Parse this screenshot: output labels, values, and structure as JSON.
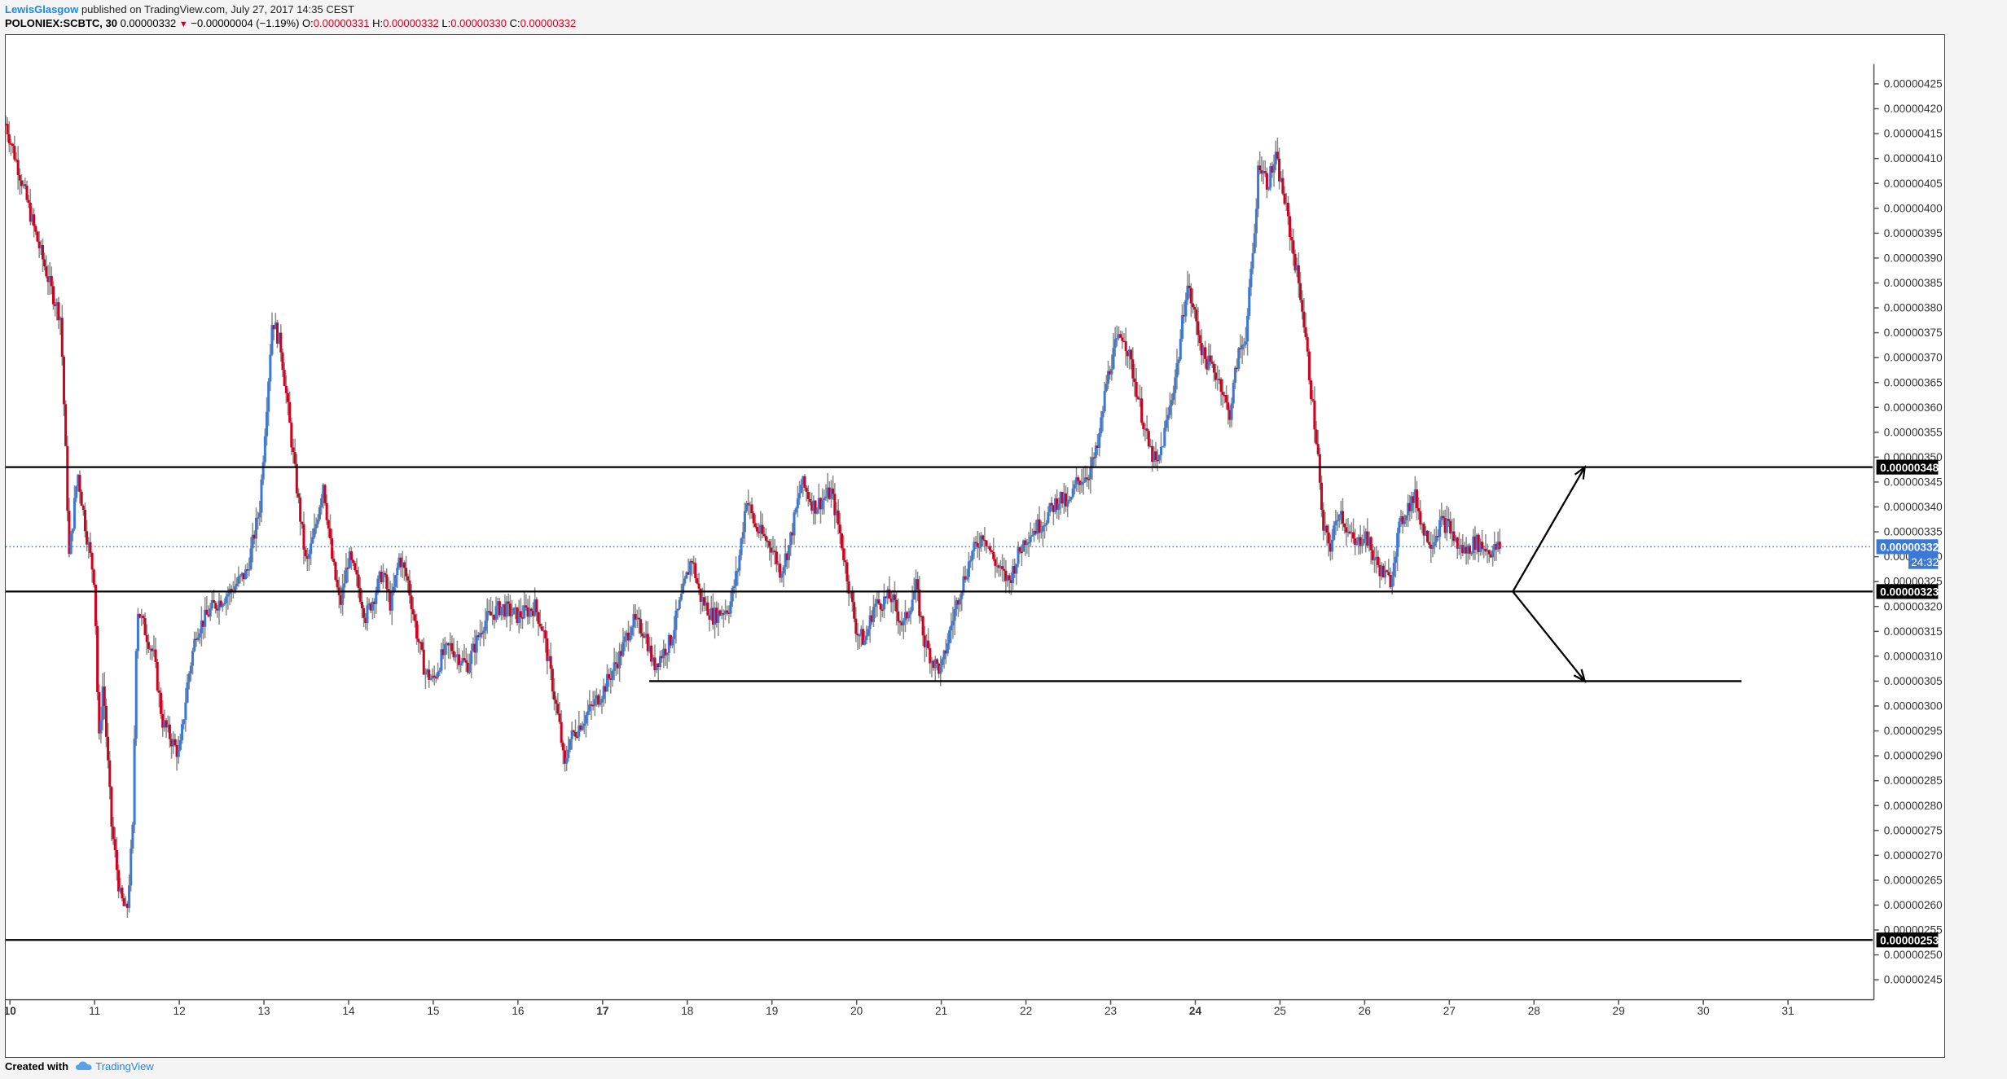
{
  "header": {
    "author": "LewisGlasgow",
    "published_text": "published on TradingView.com, July 27, 2017 14:35 CEST",
    "symbol": "POLONIEX:SCBTC, 30",
    "last_price": "0.00000332",
    "change_arrow": "▼",
    "change": "−0.00000004 (−1.19%)",
    "open_label": "O:",
    "open": "0.00000331",
    "high_label": "H:",
    "high": "0.00000332",
    "low_label": "L:",
    "low": "0.00000330",
    "close_label": "C:",
    "close": "0.00000332"
  },
  "footer": {
    "created_with": "Created with",
    "logo_icon": "tradingview-cloud-icon",
    "brand": "TradingView"
  },
  "colors": {
    "up": "#3a79d8",
    "down": "#d1001f",
    "wick": "#8a8a8a",
    "price_line": "#3a79d8",
    "level_line": "#000000",
    "badge_blue": "#3a79d8",
    "badge_black": "#000000"
  },
  "chart_data": {
    "type": "candlestick",
    "title": "POLONIEX:SCBTC, 30",
    "xlabel": "",
    "ylabel": "",
    "ylim": [
      2.41e-06,
      4.29e-06
    ],
    "x_range": [
      9.95,
      32.0
    ],
    "x_ticks": [
      "10",
      "11",
      "12",
      "13",
      "14",
      "15",
      "16",
      "17",
      "18",
      "19",
      "20",
      "21",
      "22",
      "23",
      "24",
      "25",
      "26",
      "27",
      "28",
      "29",
      "30",
      "31"
    ],
    "y_ticks": [
      "0.00000245",
      "0.00000250",
      "0.00000255",
      "0.00000260",
      "0.00000265",
      "0.00000270",
      "0.00000275",
      "0.00000280",
      "0.00000285",
      "0.00000290",
      "0.00000295",
      "0.00000300",
      "0.00000305",
      "0.00000310",
      "0.00000315",
      "0.00000320",
      "0.00000325",
      "0.00000330",
      "0.00000335",
      "0.00000340",
      "0.00000345",
      "0.00000350",
      "0.00000355",
      "0.00000360",
      "0.00000365",
      "0.00000370",
      "0.00000375",
      "0.00000380",
      "0.00000385",
      "0.00000390",
      "0.00000395",
      "0.00000400",
      "0.00000405",
      "0.00000410",
      "0.00000415",
      "0.00000420",
      "0.00000425"
    ],
    "price_path": [
      [
        9.95,
        4.17e-06
      ],
      [
        10.1,
        4.08e-06
      ],
      [
        10.3,
        3.95e-06
      ],
      [
        10.5,
        3.83e-06
      ],
      [
        10.6,
        3.78e-06
      ],
      [
        10.65,
        3.55e-06
      ],
      [
        10.7,
        3.3e-06
      ],
      [
        10.8,
        3.47e-06
      ],
      [
        10.9,
        3.35e-06
      ],
      [
        11.0,
        3.25e-06
      ],
      [
        11.05,
        2.92e-06
      ],
      [
        11.1,
        3.05e-06
      ],
      [
        11.2,
        2.76e-06
      ],
      [
        11.3,
        2.62e-06
      ],
      [
        11.38,
        2.58e-06
      ],
      [
        11.45,
        2.75e-06
      ],
      [
        11.5,
        3.2e-06
      ],
      [
        11.6,
        3.15e-06
      ],
      [
        11.7,
        3.1e-06
      ],
      [
        11.8,
        2.97e-06
      ],
      [
        12.0,
        2.9e-06
      ],
      [
        12.1,
        3.05e-06
      ],
      [
        12.2,
        3.15e-06
      ],
      [
        12.4,
        3.2e-06
      ],
      [
        12.6,
        3.23e-06
      ],
      [
        12.8,
        3.27e-06
      ],
      [
        12.95,
        3.4e-06
      ],
      [
        13.05,
        3.65e-06
      ],
      [
        13.1,
        3.78e-06
      ],
      [
        13.2,
        3.72e-06
      ],
      [
        13.3,
        3.57e-06
      ],
      [
        13.4,
        3.42e-06
      ],
      [
        13.5,
        3.28e-06
      ],
      [
        13.6,
        3.35e-06
      ],
      [
        13.7,
        3.45e-06
      ],
      [
        13.8,
        3.3e-06
      ],
      [
        13.9,
        3.2e-06
      ],
      [
        14.0,
        3.3e-06
      ],
      [
        14.1,
        3.25e-06
      ],
      [
        14.2,
        3.18e-06
      ],
      [
        14.3,
        3.22e-06
      ],
      [
        14.4,
        3.27e-06
      ],
      [
        14.5,
        3.2e-06
      ],
      [
        14.6,
        3.3e-06
      ],
      [
        14.7,
        3.25e-06
      ],
      [
        14.8,
        3.15e-06
      ],
      [
        14.9,
        3.07e-06
      ],
      [
        15.0,
        3.05e-06
      ],
      [
        15.1,
        3.1e-06
      ],
      [
        15.2,
        3.12e-06
      ],
      [
        15.4,
        3.08e-06
      ],
      [
        15.6,
        3.17e-06
      ],
      [
        15.8,
        3.2e-06
      ],
      [
        16.0,
        3.18e-06
      ],
      [
        16.2,
        3.2e-06
      ],
      [
        16.3,
        3.15e-06
      ],
      [
        16.4,
        3.05e-06
      ],
      [
        16.5,
        2.95e-06
      ],
      [
        16.55,
        2.87e-06
      ],
      [
        16.6,
        2.93e-06
      ],
      [
        16.8,
        2.98e-06
      ],
      [
        17.0,
        3.03e-06
      ],
      [
        17.2,
        3.1e-06
      ],
      [
        17.35,
        3.17e-06
      ],
      [
        17.5,
        3.15e-06
      ],
      [
        17.6,
        3.08e-06
      ],
      [
        17.8,
        3.13e-06
      ],
      [
        17.95,
        3.23e-06
      ],
      [
        18.05,
        3.3e-06
      ],
      [
        18.15,
        3.22e-06
      ],
      [
        18.3,
        3.18e-06
      ],
      [
        18.5,
        3.2e-06
      ],
      [
        18.6,
        3.28e-06
      ],
      [
        18.7,
        3.42e-06
      ],
      [
        18.8,
        3.36e-06
      ],
      [
        19.0,
        3.32e-06
      ],
      [
        19.1,
        3.27e-06
      ],
      [
        19.2,
        3.32e-06
      ],
      [
        19.35,
        3.45e-06
      ],
      [
        19.5,
        3.4e-06
      ],
      [
        19.7,
        3.43e-06
      ],
      [
        19.8,
        3.35e-06
      ],
      [
        19.9,
        3.25e-06
      ],
      [
        20.0,
        3.15e-06
      ],
      [
        20.1,
        3.13e-06
      ],
      [
        20.2,
        3.2e-06
      ],
      [
        20.4,
        3.22e-06
      ],
      [
        20.55,
        3.16e-06
      ],
      [
        20.7,
        3.24e-06
      ],
      [
        20.8,
        3.13e-06
      ],
      [
        20.9,
        3.09e-06
      ],
      [
        21.0,
        3.07e-06
      ],
      [
        21.1,
        3.15e-06
      ],
      [
        21.2,
        3.22e-06
      ],
      [
        21.35,
        3.3e-06
      ],
      [
        21.5,
        3.35e-06
      ],
      [
        21.6,
        3.3e-06
      ],
      [
        21.7,
        3.27e-06
      ],
      [
        21.8,
        3.25e-06
      ],
      [
        21.9,
        3.3e-06
      ],
      [
        22.0,
        3.34e-06
      ],
      [
        22.2,
        3.37e-06
      ],
      [
        22.4,
        3.42e-06
      ],
      [
        22.5,
        3.4e-06
      ],
      [
        22.6,
        3.45e-06
      ],
      [
        22.75,
        3.47e-06
      ],
      [
        22.85,
        3.52e-06
      ],
      [
        22.95,
        3.65e-06
      ],
      [
        23.05,
        3.72e-06
      ],
      [
        23.15,
        3.75e-06
      ],
      [
        23.25,
        3.68e-06
      ],
      [
        23.35,
        3.6e-06
      ],
      [
        23.45,
        3.52e-06
      ],
      [
        23.55,
        3.48e-06
      ],
      [
        23.7,
        3.6e-06
      ],
      [
        23.8,
        3.7e-06
      ],
      [
        23.9,
        3.85e-06
      ],
      [
        24.0,
        3.78e-06
      ],
      [
        24.1,
        3.7e-06
      ],
      [
        24.2,
        3.68e-06
      ],
      [
        24.3,
        3.65e-06
      ],
      [
        24.4,
        3.58e-06
      ],
      [
        24.5,
        3.7e-06
      ],
      [
        24.6,
        3.75e-06
      ],
      [
        24.7,
        3.95e-06
      ],
      [
        24.75,
        4.1e-06
      ],
      [
        24.85,
        4.05e-06
      ],
      [
        24.95,
        4.1e-06
      ],
      [
        25.05,
        4.02e-06
      ],
      [
        25.15,
        3.92e-06
      ],
      [
        25.25,
        3.82e-06
      ],
      [
        25.35,
        3.66e-06
      ],
      [
        25.45,
        3.5e-06
      ],
      [
        25.5,
        3.36e-06
      ],
      [
        25.6,
        3.32e-06
      ],
      [
        25.7,
        3.4e-06
      ],
      [
        25.8,
        3.35e-06
      ],
      [
        25.9,
        3.32e-06
      ],
      [
        26.0,
        3.35e-06
      ],
      [
        26.1,
        3.3e-06
      ],
      [
        26.2,
        3.27e-06
      ],
      [
        26.3,
        3.25e-06
      ],
      [
        26.4,
        3.35e-06
      ],
      [
        26.5,
        3.4e-06
      ],
      [
        26.6,
        3.42e-06
      ],
      [
        26.7,
        3.35e-06
      ],
      [
        26.8,
        3.33e-06
      ],
      [
        26.9,
        3.37e-06
      ],
      [
        27.0,
        3.36e-06
      ],
      [
        27.1,
        3.32e-06
      ],
      [
        27.2,
        3.31e-06
      ],
      [
        27.3,
        3.33e-06
      ],
      [
        27.4,
        3.32e-06
      ],
      [
        27.5,
        3.31e-06
      ],
      [
        27.6,
        3.32e-06
      ]
    ],
    "level_lines": [
      {
        "value": 3.48e-06,
        "label": "0.00000348",
        "x_start": 9.95,
        "x_end": 32.0
      },
      {
        "value": 3.23e-06,
        "label": "0.00000323",
        "x_start": 9.95,
        "x_end": 32.0
      },
      {
        "value": 2.53e-06,
        "label": "0.00000253",
        "x_start": 9.95,
        "x_end": 32.0
      },
      {
        "value": 3.05e-06,
        "label": "",
        "x_start": 17.55,
        "x_end": 30.45
      }
    ],
    "arrows": [
      {
        "from": [
          27.75,
          3.23e-06
        ],
        "to": [
          28.6,
          3.48e-06
        ]
      },
      {
        "from": [
          27.75,
          3.23e-06
        ],
        "to": [
          28.6,
          3.05e-06
        ]
      }
    ],
    "last_price": {
      "value": 3.32e-06,
      "label": "0.00000332",
      "countdown": "24:32"
    },
    "y_axis_position": "right",
    "grid": false,
    "legend": "none"
  }
}
